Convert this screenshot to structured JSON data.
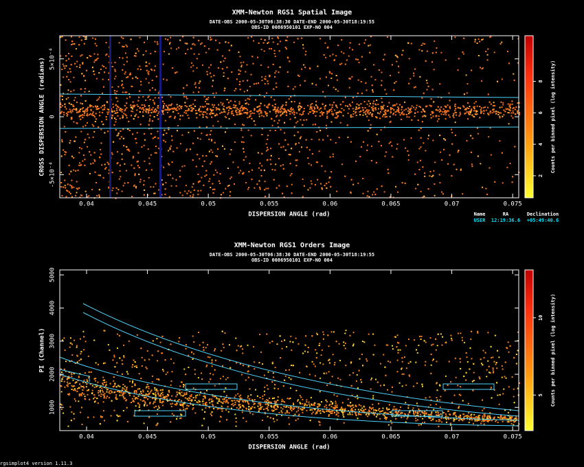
{
  "chart_data": [
    {
      "type": "image",
      "title": "XMM-Newton  RGS1 Spatial Image",
      "subtitle": [
        "DATE-OBS 2000-05-30T06:38:30   DATE-END 2000-05-30T18:19:55",
        "OBS-ID 0086950101  EXP-NO 004"
      ],
      "xlabel": "DISPERSION ANGLE (rad)",
      "ylabel": "CROSS DISPERSION ANGLE (radians)",
      "xlim": [
        0.0378,
        0.0755
      ],
      "xticks": [
        0.04,
        0.045,
        0.05,
        0.055,
        0.06,
        0.065,
        0.07,
        0.075
      ],
      "ylim": [
        -0.0007,
        0.0007
      ],
      "yticks": [
        {
          "value": -0.0005,
          "label": "-5×10⁻⁴"
        },
        0,
        {
          "value": 0.0005,
          "label": "5×10⁻⁴"
        }
      ],
      "colorbar_label": "Counts per binned pixel (log intensity)",
      "clim": [
        0.6,
        10.9
      ],
      "cticks": [
        2,
        4,
        6,
        8
      ],
      "source_table": {
        "headers": [
          "Name",
          "RA",
          "Declination"
        ],
        "row": [
          "USER",
          "12:19:36.6",
          "+05:49:40.6"
        ]
      }
    },
    {
      "type": "image",
      "title": "XMM-Newton  RGS1 Orders Image",
      "subtitle": [
        "DATE-OBS 2000-05-30T06:38:30   DATE-END 2000-05-30T18:19:55",
        "OBS-ID 0086950101  EXP-NO 004"
      ],
      "xlabel": "DISPERSION ANGLE (rad)",
      "ylabel": "PI (Channel)",
      "xlim": [
        0.0378,
        0.0755
      ],
      "xticks": [
        0.04,
        0.045,
        0.05,
        0.055,
        0.06,
        0.065,
        0.07,
        0.075
      ],
      "ylim": [
        300,
        5150
      ],
      "yticks": [
        1000,
        2000,
        3000,
        4000,
        5000
      ],
      "colorbar_label": "Counts per binned pixel (log intensity)",
      "clim": [
        2.7,
        13.1
      ],
      "cticks": [
        5,
        10
      ]
    }
  ],
  "footer": "rgsimplot4 version 1.11.3"
}
